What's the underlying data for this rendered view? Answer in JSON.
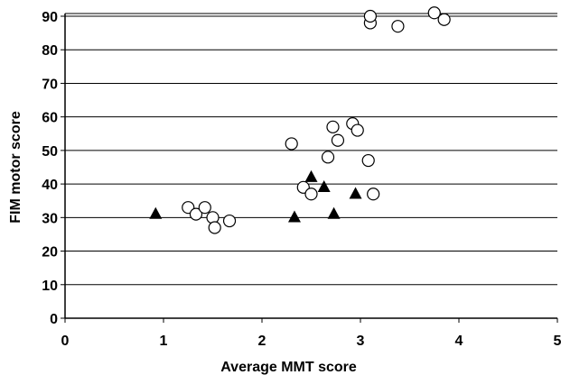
{
  "chart_data": {
    "type": "scatter",
    "xlabel": "Average MMT score",
    "ylabel": "FIM motor score",
    "xlim": [
      0,
      5
    ],
    "ylim": [
      0,
      90
    ],
    "x_ticks": [
      "0",
      "1",
      "2",
      "3",
      "4",
      "5"
    ],
    "y_ticks": [
      "0",
      "10",
      "20",
      "30",
      "40",
      "50",
      "60",
      "70",
      "80",
      "90"
    ],
    "grid": "horizontal",
    "legend": "none",
    "series": [
      {
        "marker": "open-circle",
        "color": "#000000",
        "points": [
          [
            1.25,
            33
          ],
          [
            1.33,
            31
          ],
          [
            1.42,
            33
          ],
          [
            1.5,
            30
          ],
          [
            1.52,
            27
          ],
          [
            1.67,
            29
          ],
          [
            2.3,
            52
          ],
          [
            2.42,
            39
          ],
          [
            2.5,
            37
          ],
          [
            2.67,
            48
          ],
          [
            2.72,
            57
          ],
          [
            2.77,
            53
          ],
          [
            2.92,
            58
          ],
          [
            2.97,
            56
          ],
          [
            3.08,
            47
          ],
          [
            3.13,
            37
          ],
          [
            3.1,
            88
          ],
          [
            3.1,
            90
          ],
          [
            3.38,
            87
          ],
          [
            3.75,
            91
          ],
          [
            3.85,
            89
          ]
        ]
      },
      {
        "marker": "filled-triangle",
        "color": "#000000",
        "points": [
          [
            0.92,
            31
          ],
          [
            2.33,
            30
          ],
          [
            2.5,
            42
          ],
          [
            2.63,
            39
          ],
          [
            2.73,
            31
          ],
          [
            2.95,
            37
          ]
        ]
      }
    ]
  }
}
